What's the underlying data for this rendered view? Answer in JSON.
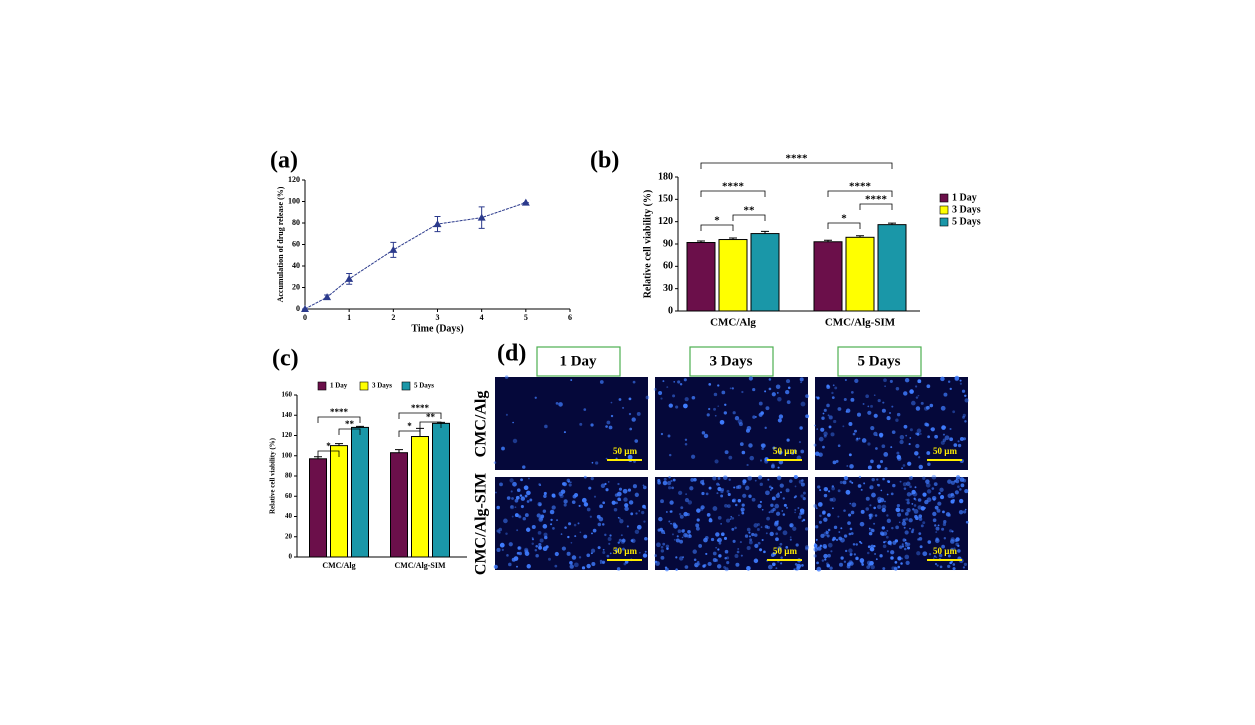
{
  "chart_data": [
    {
      "type": "line",
      "panel": "(a)",
      "xlabel": "Time (Days)",
      "ylabel": "Accumulation of drug release (%)",
      "x": [
        0,
        0.5,
        1,
        2,
        3,
        4,
        5
      ],
      "values": [
        0,
        11,
        28,
        55,
        79,
        85,
        99
      ],
      "errors": [
        0,
        2,
        5,
        7,
        7,
        10,
        0
      ],
      "color": "#2b3a8c",
      "xlim": [
        0,
        6
      ],
      "xticks": [
        0,
        1,
        2,
        3,
        4,
        5,
        6
      ],
      "ylim": [
        0,
        120
      ],
      "yticks": [
        0,
        20,
        40,
        60,
        80,
        100,
        120
      ]
    },
    {
      "type": "bar",
      "panel": "(b)",
      "ylabel": "Relative cell viability (%)",
      "categories": [
        "CMC/Alg",
        "CMC/Alg-SIM"
      ],
      "series": [
        {
          "name": "1 Day",
          "color": "#6b0f4a",
          "values": [
            92,
            93
          ],
          "errors": [
            2,
            2
          ]
        },
        {
          "name": "3 Days",
          "color": "#ffff00",
          "values": [
            96,
            99
          ],
          "errors": [
            2,
            2
          ]
        },
        {
          "name": "5 Days",
          "color": "#1a97a8",
          "values": [
            104,
            116
          ],
          "errors": [
            3,
            2
          ]
        }
      ],
      "ylim": [
        0,
        180
      ],
      "yticks": [
        0,
        30,
        60,
        90,
        120,
        150,
        180
      ],
      "legend": "right",
      "annotations": [
        "****",
        "****",
        "**",
        "*",
        "****",
        "****",
        "*"
      ]
    },
    {
      "type": "bar",
      "panel": "(c)",
      "ylabel": "Relative cell viability (%)",
      "categories": [
        "CMC/Alg",
        "CMC/Alg-SIM"
      ],
      "series": [
        {
          "name": "1 Day",
          "color": "#6b0f4a",
          "values": [
            97,
            103
          ],
          "errors": [
            2,
            3
          ]
        },
        {
          "name": "3 Days",
          "color": "#ffff00",
          "values": [
            110,
            119
          ],
          "errors": [
            2,
            8
          ]
        },
        {
          "name": "5 Days",
          "color": "#1a97a8",
          "values": [
            128,
            132
          ],
          "errors": [
            1,
            1
          ]
        }
      ],
      "ylim": [
        0,
        160
      ],
      "yticks": [
        0,
        20,
        40,
        60,
        80,
        100,
        120,
        140,
        160
      ],
      "legend": "top",
      "annotations": [
        "****",
        "**",
        "*",
        "****",
        "**",
        "*"
      ]
    }
  ],
  "images": {
    "panel": "(d)",
    "columns": [
      "1 Day",
      "3 Days",
      "5 Days"
    ],
    "rows": [
      "CMC/Alg",
      "CMC/Alg-SIM"
    ],
    "scale_bar": "50 µm"
  }
}
